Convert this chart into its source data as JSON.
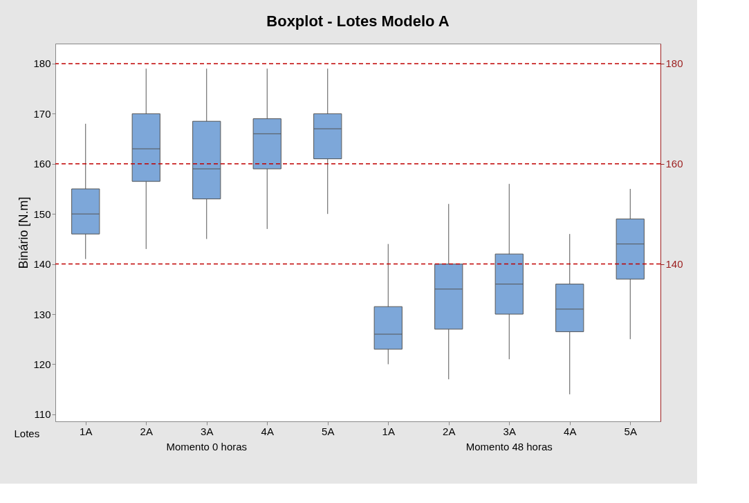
{
  "chart_data": {
    "type": "box",
    "title": "Boxplot - Lotes Modelo A",
    "xlabel": "Lotes",
    "ylabel": "Binário [N.m]",
    "categories": [
      "1A",
      "2A",
      "3A",
      "4A",
      "5A",
      "1A",
      "2A",
      "3A",
      "4A",
      "5A"
    ],
    "series": [
      {
        "color": "#7da7d9",
        "boxes": [
          {
            "low": 141,
            "q1": 146,
            "median": 150,
            "q3": 155,
            "high": 168
          },
          {
            "low": 143,
            "q1": 156.5,
            "median": 163,
            "q3": 170,
            "high": 179
          },
          {
            "low": 145,
            "q1": 153,
            "median": 159,
            "q3": 168.5,
            "high": 179
          },
          {
            "low": 147,
            "q1": 159,
            "median": 166,
            "q3": 169,
            "high": 179
          },
          {
            "low": 150,
            "q1": 161,
            "median": 167,
            "q3": 170,
            "high": 179
          },
          {
            "low": 120,
            "q1": 123,
            "median": 126,
            "q3": 131.5,
            "high": 144
          },
          {
            "low": 117,
            "q1": 127,
            "median": 135,
            "q3": 140,
            "high": 152
          },
          {
            "low": 121,
            "q1": 130,
            "median": 136,
            "q3": 142,
            "high": 156
          },
          {
            "low": 114,
            "q1": 126.5,
            "median": 131,
            "q3": 136,
            "high": 146
          },
          {
            "low": 125,
            "q1": 137,
            "median": 144,
            "q3": 149,
            "high": 155
          }
        ]
      }
    ],
    "ylim": [
      108.6,
      184
    ],
    "yticks": [
      110,
      120,
      130,
      140,
      150,
      160,
      170,
      180
    ],
    "y2lim": [
      108.6,
      184
    ],
    "y2ticks": [
      140,
      160,
      180
    ],
    "ref_lines": [
      {
        "axis": "y",
        "value": 140,
        "color": "#c00000",
        "line_style": "dashed"
      },
      {
        "axis": "y",
        "value": 160,
        "color": "#c00000",
        "line_style": "dashed"
      },
      {
        "axis": "y",
        "value": 180,
        "color": "#c00000",
        "line_style": "dashed"
      }
    ],
    "annotations": [
      "Momento 0 horas",
      "Momento 48 horas"
    ],
    "grid": false
  }
}
